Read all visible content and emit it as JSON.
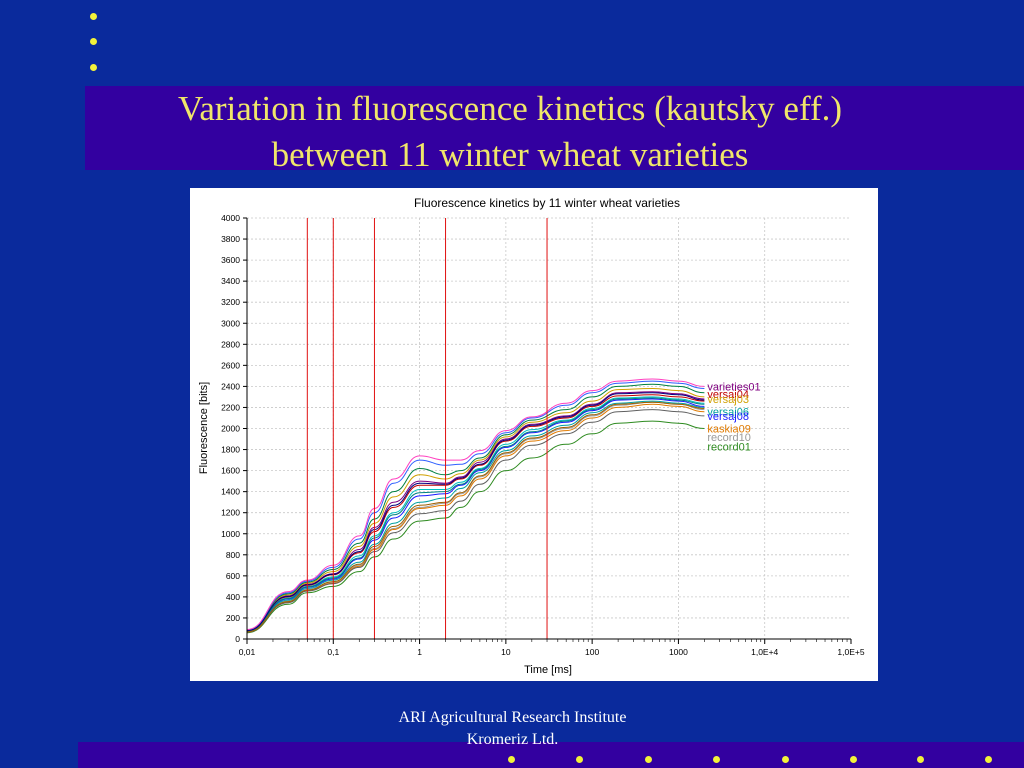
{
  "slide": {
    "title_line1": "Variation in fluorescence kinetics (kautsky eff.)",
    "title_line2": "between 11 winter wheat varieties",
    "footer_line1": "ARI   Agricultural Research Institute",
    "footer_line2": "Kromeriz Ltd.",
    "colors": {
      "background": "#0a2a9c",
      "band": "#3300a0",
      "title": "#f0e66a",
      "bullet": "#f2f23a"
    }
  },
  "chart_data": {
    "type": "line",
    "title": "Fluorescence kinetics by 11 winter wheat varieties",
    "xlabel": "Time [ms]",
    "ylabel": "Fluorescence [bits]",
    "xscale": "log",
    "xlim": [
      0.01,
      100000
    ],
    "ylim": [
      0,
      4000
    ],
    "xticks": [
      0.01,
      0.1,
      1,
      10,
      100,
      1000,
      10000,
      100000
    ],
    "xtick_labels": [
      "0,01",
      "0,1",
      "1",
      "10",
      "100",
      "1000",
      "1,0E+4",
      "1,0E+5"
    ],
    "yticks": [
      0,
      200,
      400,
      600,
      800,
      1000,
      1200,
      1400,
      1600,
      1800,
      2000,
      2200,
      2400,
      2600,
      2800,
      3000,
      3200,
      3400,
      3600,
      3800,
      4000
    ],
    "grid": true,
    "vertical_markers_x": [
      0.05,
      0.1,
      0.3,
      2,
      30
    ],
    "vertical_marker_color": "#e01010",
    "x": [
      0.01,
      0.03,
      0.05,
      0.1,
      0.2,
      0.3,
      0.5,
      1,
      2,
      3,
      5,
      10,
      20,
      50,
      100,
      200,
      500,
      1000,
      2000
    ],
    "series": [
      {
        "name": "record01",
        "color": "#2e8b20",
        "values": [
          60,
          330,
          440,
          500,
          640,
          780,
          950,
          1120,
          1150,
          1250,
          1400,
          1600,
          1720,
          1850,
          1950,
          2050,
          2070,
          2050,
          2000
        ]
      },
      {
        "values": [
          70,
          360,
          470,
          540,
          700,
          860,
          1050,
          1250,
          1290,
          1380,
          1540,
          1760,
          1900,
          2000,
          2120,
          2220,
          2250,
          2230,
          2180
        ],
        "color": "#9a9a9a"
      },
      {
        "name": "kaskia09",
        "color": "#e07a00",
        "values": [
          65,
          350,
          460,
          530,
          690,
          850,
          1040,
          1240,
          1270,
          1360,
          1520,
          1740,
          1880,
          1980,
          2100,
          2200,
          2230,
          2210,
          2160
        ]
      },
      {
        "values": [
          70,
          370,
          480,
          560,
          730,
          900,
          1100,
          1300,
          1340,
          1430,
          1580,
          1790,
          1930,
          2030,
          2150,
          2240,
          2260,
          2240,
          2200
        ],
        "color": "#00a0a0"
      },
      {
        "values": [
          72,
          380,
          490,
          570,
          760,
          940,
          1150,
          1360,
          1380,
          1460,
          1600,
          1820,
          1960,
          2060,
          2170,
          2270,
          2280,
          2260,
          2210
        ],
        "color": "#1a1aff"
      },
      {
        "values": [
          75,
          390,
          500,
          590,
          790,
          980,
          1200,
          1420,
          1420,
          1490,
          1620,
          1850,
          1990,
          2080,
          2190,
          2290,
          2300,
          2280,
          2240
        ],
        "color": "#00c0c0"
      },
      {
        "values": [
          78,
          400,
          510,
          610,
          820,
          1020,
          1250,
          1460,
          1460,
          1520,
          1650,
          1880,
          2020,
          2100,
          2210,
          2310,
          2320,
          2300,
          2260
        ],
        "color": "#c00000"
      },
      {
        "values": [
          80,
          410,
          520,
          620,
          850,
          1060,
          1300,
          1500,
          1480,
          1540,
          1680,
          1900,
          2040,
          2120,
          2230,
          2340,
          2350,
          2330,
          2280
        ],
        "color": "#800080"
      },
      {
        "values": [
          82,
          420,
          530,
          640,
          880,
          1100,
          1350,
          1560,
          1520,
          1570,
          1700,
          1920,
          2060,
          2150,
          2260,
          2370,
          2380,
          2360,
          2300
        ],
        "color": "#d0a000"
      },
      {
        "values": [
          85,
          430,
          540,
          660,
          910,
          1140,
          1400,
          1620,
          1560,
          1600,
          1720,
          1940,
          2080,
          2180,
          2300,
          2400,
          2420,
          2400,
          2340
        ],
        "color": "#008040"
      },
      {
        "values": [
          88,
          440,
          550,
          680,
          950,
          1200,
          1480,
          1700,
          1650,
          1660,
          1760,
          1960,
          2100,
          2220,
          2340,
          2430,
          2450,
          2430,
          2380
        ],
        "color": "#3060ff"
      },
      {
        "values": [
          90,
          450,
          560,
          700,
          980,
          1240,
          1520,
          1740,
          1700,
          1700,
          1790,
          1980,
          2110,
          2240,
          2360,
          2450,
          2470,
          2450,
          2400
        ],
        "color": "#ff40c0"
      },
      {
        "values": [
          66,
          345,
          455,
          525,
          680,
          830,
          1010,
          1190,
          1220,
          1310,
          1470,
          1700,
          1840,
          1950,
          2060,
          2160,
          2180,
          2160,
          2120
        ],
        "color": "#606060"
      },
      {
        "values": [
          74,
          385,
          495,
          580,
          770,
          960,
          1180,
          1390,
          1400,
          1470,
          1610,
          1830,
          1970,
          2070,
          2180,
          2280,
          2290,
          2270,
          2230
        ],
        "color": "#008080"
      },
      {
        "values": [
          68,
          355,
          465,
          545,
          710,
          880,
          1070,
          1270,
          1300,
          1390,
          1550,
          1770,
          1910,
          2010,
          2130,
          2230,
          2250,
          2230,
          2190
        ],
        "color": "#a06000"
      },
      {
        "values": [
          79,
          405,
          515,
          615,
          830,
          1040,
          1270,
          1480,
          1470,
          1530,
          1660,
          1890,
          2030,
          2110,
          2220,
          2330,
          2340,
          2320,
          2270
        ],
        "color": "#000080"
      }
    ],
    "end_labels": [
      {
        "text": "varieties01",
        "color": "#800080",
        "y": 2400
      },
      {
        "text": "versaj04",
        "color": "#c00000",
        "y": 2330
      },
      {
        "text": "versaj03",
        "color": "#d0a000",
        "y": 2280
      },
      {
        "text": "versaj06",
        "color": "#00a0a0",
        "y": 2160
      },
      {
        "text": "versaj08",
        "color": "#1a1aff",
        "y": 2120
      },
      {
        "text": "kaskia09",
        "color": "#e07a00",
        "y": 2000
      },
      {
        "text": "record10",
        "color": "#9a9a9a",
        "y": 1920
      },
      {
        "text": "record01",
        "color": "#2e8b20",
        "y": 1830
      }
    ]
  }
}
